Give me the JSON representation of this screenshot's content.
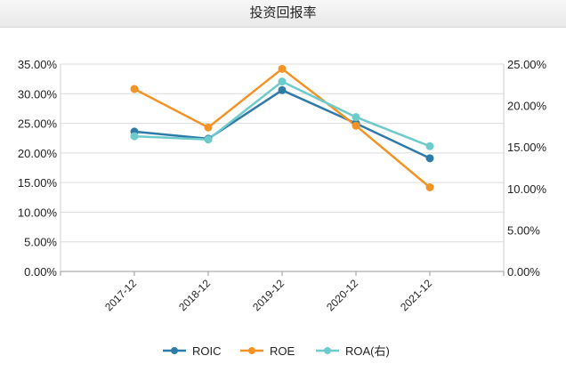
{
  "header": {
    "title": "投资回报率"
  },
  "chart_data": {
    "type": "line",
    "title": "投资回报率",
    "categories": [
      "2017-12",
      "2018-12",
      "2019-12",
      "2020-12",
      "2021-12"
    ],
    "y_left": {
      "ylim": [
        0,
        35
      ],
      "ticks": [
        "0.00%",
        "5.00%",
        "10.00%",
        "15.00%",
        "20.00%",
        "25.00%",
        "30.00%",
        "35.00%"
      ]
    },
    "y_right": {
      "ylim": [
        0,
        25
      ],
      "ticks": [
        "0.00%",
        "5.00%",
        "10.00%",
        "15.00%",
        "20.00%",
        "25.00%"
      ]
    },
    "grid": true,
    "legend_position": "bottom",
    "series": [
      {
        "name": "ROIC",
        "axis": "left",
        "color": "#2e7aa8",
        "values": [
          23.6,
          22.4,
          30.6,
          25.0,
          19.1
        ]
      },
      {
        "name": "ROE",
        "axis": "left",
        "color": "#f39325",
        "values": [
          30.8,
          24.3,
          34.2,
          24.6,
          14.2
        ]
      },
      {
        "name": "ROA(右)",
        "axis": "right",
        "color": "#6ecbcb",
        "values": [
          16.3,
          15.9,
          22.9,
          18.6,
          15.1
        ]
      }
    ]
  }
}
